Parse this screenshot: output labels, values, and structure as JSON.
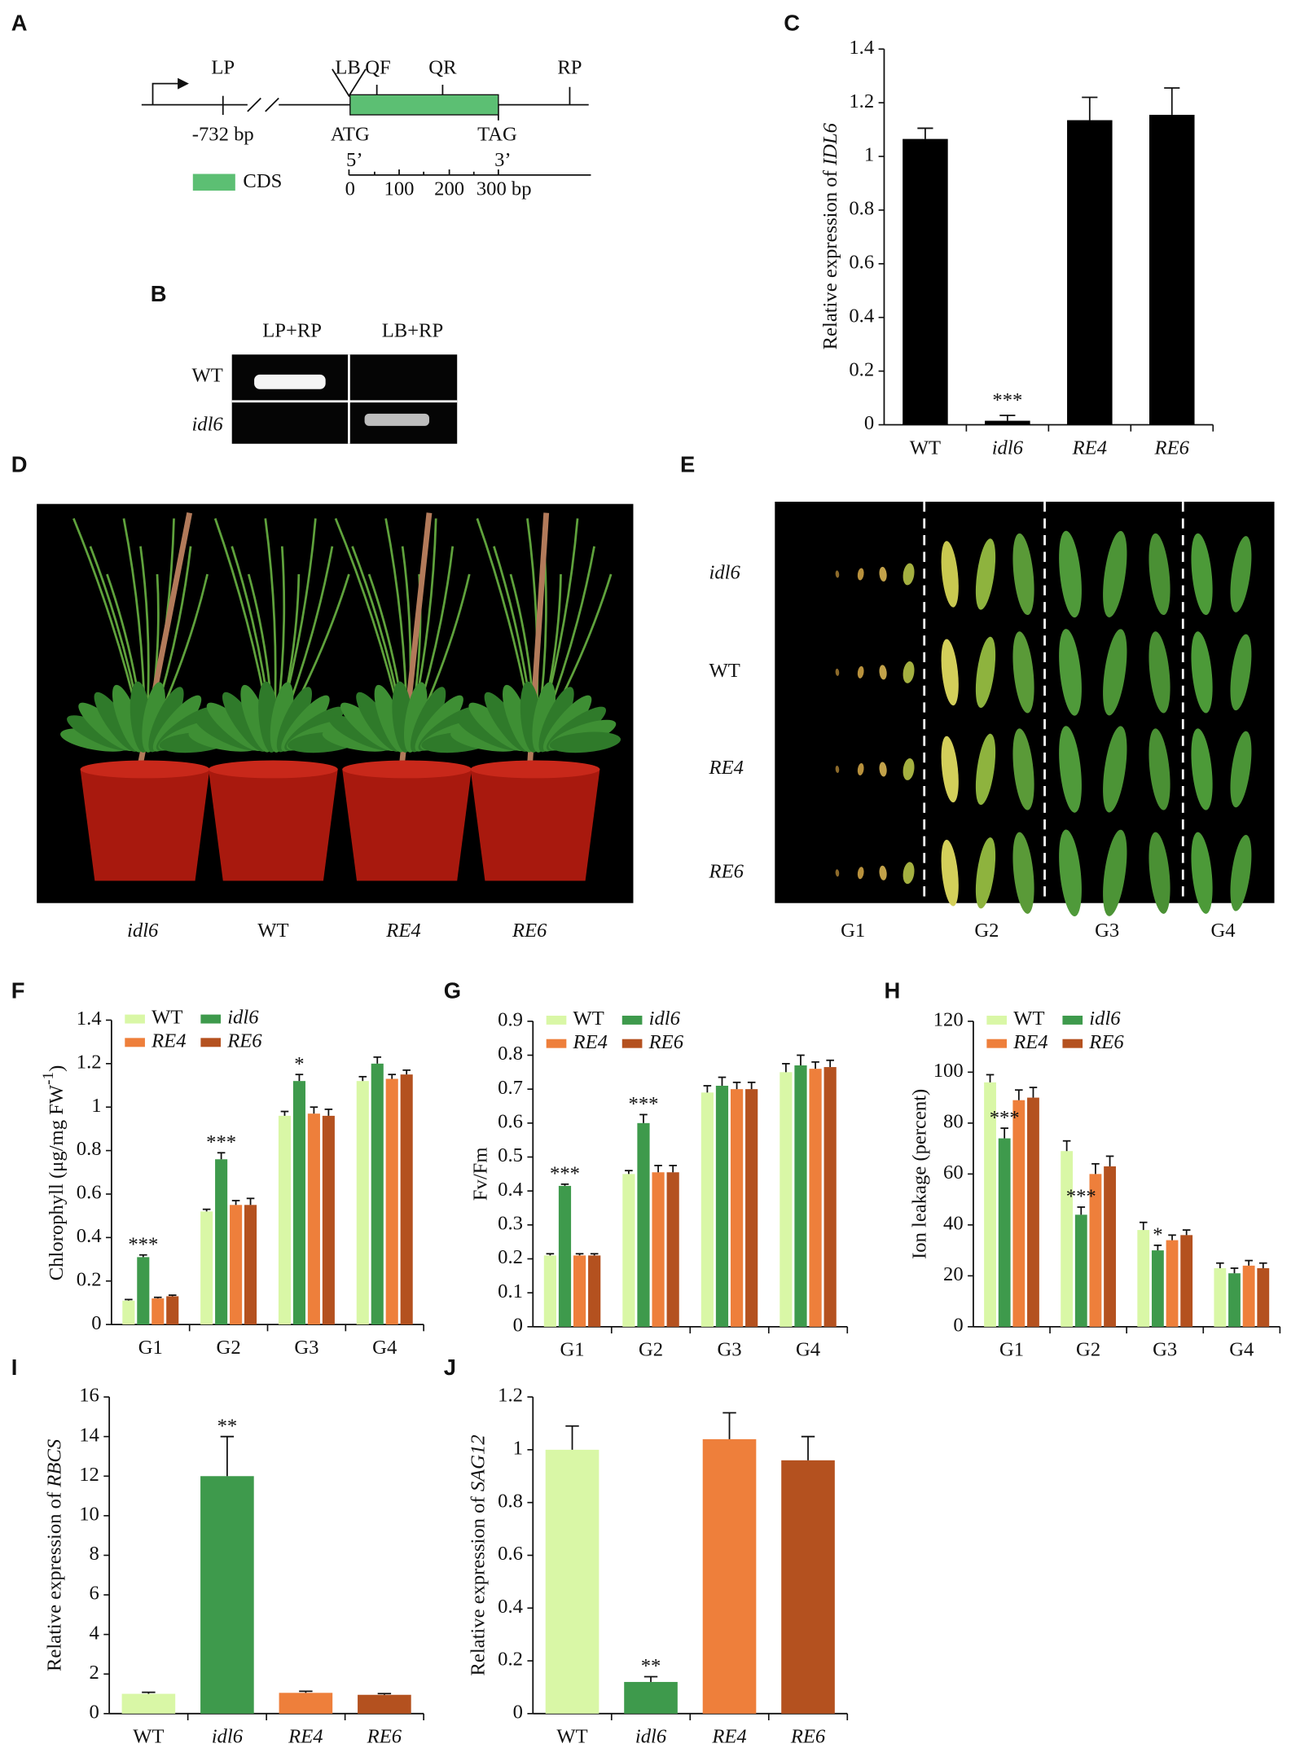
{
  "diagram": {
    "label": "A",
    "primers": [
      "LP",
      "LB",
      "QF",
      "QR",
      "RP"
    ],
    "position": "-732 bp",
    "start": "ATG",
    "stop": "TAG",
    "legend": "CDS",
    "ends": [
      "5’",
      "3’"
    ],
    "scale": [
      "0",
      "100",
      "200",
      "300 bp"
    ]
  },
  "gel": {
    "label": "B",
    "lanes": [
      "LP+RP",
      "LB+RP"
    ],
    "rows": [
      "WT",
      "idl6"
    ]
  },
  "plants": {
    "label": "D",
    "names": [
      "idl6",
      "WT",
      "RE4",
      "RE6"
    ]
  },
  "leaves": {
    "label": "E",
    "rows": [
      "idl6",
      "WT",
      "RE4",
      "RE6"
    ],
    "columns": [
      "G1",
      "G2",
      "G3",
      "G4"
    ]
  },
  "chart_data": [
    {
      "label": "C",
      "type": "bar",
      "ylabel_parts": [
        {
          "text": "Relative expression of "
        },
        {
          "text": "IDL6",
          "italic": true
        }
      ],
      "categories": [
        "WT",
        "idl6",
        "RE4",
        "RE6"
      ],
      "category_style": [
        "normal",
        "italic",
        "italic",
        "italic"
      ],
      "values": [
        1.065,
        0.015,
        1.135,
        1.155
      ],
      "errors": [
        0.04,
        0.02,
        0.085,
        0.1
      ],
      "color": "#000000",
      "ylim": [
        0,
        1.4
      ],
      "yticks": [
        0,
        0.2,
        0.4,
        0.6,
        0.8,
        1,
        1.2,
        1.4
      ],
      "annotations": [
        {
          "text": "***",
          "category": 1
        }
      ]
    },
    {
      "label": "F",
      "type": "grouped_bar",
      "ylabel_parts": [
        {
          "text": "Chlorophyll (μg/mg FW"
        },
        {
          "text": "-1",
          "sup": true
        },
        {
          "text": ")"
        }
      ],
      "categories": [
        "G1",
        "G2",
        "G3",
        "G4"
      ],
      "series": [
        {
          "name": "WT",
          "color": "#d9f7a6",
          "font_style": "normal",
          "values": [
            0.11,
            0.52,
            0.96,
            1.12
          ],
          "errors": [
            0.005,
            0.01,
            0.02,
            0.02
          ]
        },
        {
          "name": "idl6",
          "color": "#3e9a4c",
          "font_style": "italic",
          "values": [
            0.31,
            0.76,
            1.12,
            1.2
          ],
          "errors": [
            0.01,
            0.03,
            0.03,
            0.03
          ]
        },
        {
          "name": "RE4",
          "color": "#ee7f3b",
          "font_style": "italic",
          "values": [
            0.12,
            0.55,
            0.97,
            1.13
          ],
          "errors": [
            0.005,
            0.02,
            0.03,
            0.02
          ]
        },
        {
          "name": "RE6",
          "color": "#b4511f",
          "font_style": "italic",
          "values": [
            0.13,
            0.55,
            0.96,
            1.15
          ],
          "errors": [
            0.005,
            0.03,
            0.03,
            0.02
          ]
        }
      ],
      "ylim": [
        0,
        1.4
      ],
      "yticks": [
        0,
        0.2,
        0.4,
        0.6,
        0.8,
        1,
        1.2,
        1.4
      ],
      "annotations": [
        {
          "text": "***",
          "category": 0,
          "series": 1
        },
        {
          "text": "***",
          "category": 1,
          "series": 1
        },
        {
          "text": "*",
          "category": 2,
          "series": 1
        }
      ]
    },
    {
      "label": "G",
      "type": "grouped_bar",
      "ylabel_parts": [
        {
          "text": "Fv/Fm"
        }
      ],
      "categories": [
        "G1",
        "G2",
        "G3",
        "G4"
      ],
      "series": [
        {
          "name": "WT",
          "color": "#d9f7a6",
          "font_style": "normal",
          "values": [
            0.21,
            0.45,
            0.69,
            0.75
          ],
          "errors": [
            0.005,
            0.01,
            0.02,
            0.025
          ]
        },
        {
          "name": "idl6",
          "color": "#3e9a4c",
          "font_style": "italic",
          "values": [
            0.415,
            0.6,
            0.71,
            0.77
          ],
          "errors": [
            0.005,
            0.025,
            0.025,
            0.03
          ]
        },
        {
          "name": "RE4",
          "color": "#ee7f3b",
          "font_style": "italic",
          "values": [
            0.21,
            0.455,
            0.7,
            0.76
          ],
          "errors": [
            0.005,
            0.02,
            0.02,
            0.02
          ]
        },
        {
          "name": "RE6",
          "color": "#b4511f",
          "font_style": "italic",
          "values": [
            0.21,
            0.455,
            0.7,
            0.765
          ],
          "errors": [
            0.005,
            0.02,
            0.02,
            0.02
          ]
        }
      ],
      "ylim": [
        0,
        0.9
      ],
      "yticks": [
        0,
        0.1,
        0.2,
        0.3,
        0.4,
        0.5,
        0.6,
        0.7,
        0.8,
        0.9
      ],
      "annotations": [
        {
          "text": "***",
          "category": 0,
          "series": 1
        },
        {
          "text": "***",
          "category": 1,
          "series": 1
        }
      ]
    },
    {
      "label": "H",
      "type": "grouped_bar",
      "ylabel_parts": [
        {
          "text": "Ion leakage (percent)"
        }
      ],
      "categories": [
        "G1",
        "G2",
        "G3",
        "G4"
      ],
      "series": [
        {
          "name": "WT",
          "color": "#d9f7a6",
          "font_style": "normal",
          "values": [
            96,
            69,
            38,
            23
          ],
          "errors": [
            3,
            4,
            3,
            2
          ]
        },
        {
          "name": "idl6",
          "color": "#3e9a4c",
          "font_style": "italic",
          "values": [
            74,
            44,
            30,
            21
          ],
          "errors": [
            4,
            3,
            2,
            2
          ]
        },
        {
          "name": "RE4",
          "color": "#ee7f3b",
          "font_style": "italic",
          "values": [
            89,
            60,
            34,
            24
          ],
          "errors": [
            4,
            4,
            2,
            2
          ]
        },
        {
          "name": "RE6",
          "color": "#b4511f",
          "font_style": "italic",
          "values": [
            90,
            63,
            36,
            23
          ],
          "errors": [
            4,
            4,
            2,
            2
          ]
        }
      ],
      "ylim": [
        0,
        120
      ],
      "yticks": [
        0,
        20,
        40,
        60,
        80,
        100,
        120
      ],
      "annotations": [
        {
          "text": "***",
          "category": 0,
          "series": 1
        },
        {
          "text": "***",
          "category": 1,
          "series": 1
        },
        {
          "text": "*",
          "category": 2,
          "series": 1
        }
      ]
    },
    {
      "label": "I",
      "type": "bar",
      "ylabel_parts": [
        {
          "text": "Relative expression of "
        },
        {
          "text": "RBCS",
          "italic": true
        }
      ],
      "categories": [
        "WT",
        "idl6",
        "RE4",
        "RE6"
      ],
      "category_style": [
        "normal",
        "italic",
        "italic",
        "italic"
      ],
      "values": [
        1,
        12,
        1.05,
        0.95
      ],
      "errors": [
        0.08,
        2,
        0.08,
        0.06
      ],
      "colors": [
        "#d9f7a6",
        "#3e9a4c",
        "#ee7f3b",
        "#b4511f"
      ],
      "ylim": [
        0,
        16
      ],
      "yticks": [
        0,
        2,
        4,
        6,
        8,
        10,
        12,
        14,
        16
      ],
      "annotations": [
        {
          "text": "**",
          "category": 1
        }
      ]
    },
    {
      "label": "J",
      "type": "bar",
      "ylabel_parts": [
        {
          "text": "Relative expression of "
        },
        {
          "text": "SAG12",
          "italic": true
        }
      ],
      "categories": [
        "WT",
        "idl6",
        "RE4",
        "RE6"
      ],
      "category_style": [
        "normal",
        "italic",
        "italic",
        "italic"
      ],
      "values": [
        1,
        0.12,
        1.04,
        0.96
      ],
      "errors": [
        0.09,
        0.02,
        0.1,
        0.09
      ],
      "colors": [
        "#d9f7a6",
        "#3e9a4c",
        "#ee7f3b",
        "#b4511f"
      ],
      "ylim": [
        0,
        1.2
      ],
      "yticks": [
        0,
        0.2,
        0.4,
        0.6,
        0.8,
        1,
        1.2
      ],
      "annotations": [
        {
          "text": "**",
          "category": 1
        }
      ]
    }
  ]
}
